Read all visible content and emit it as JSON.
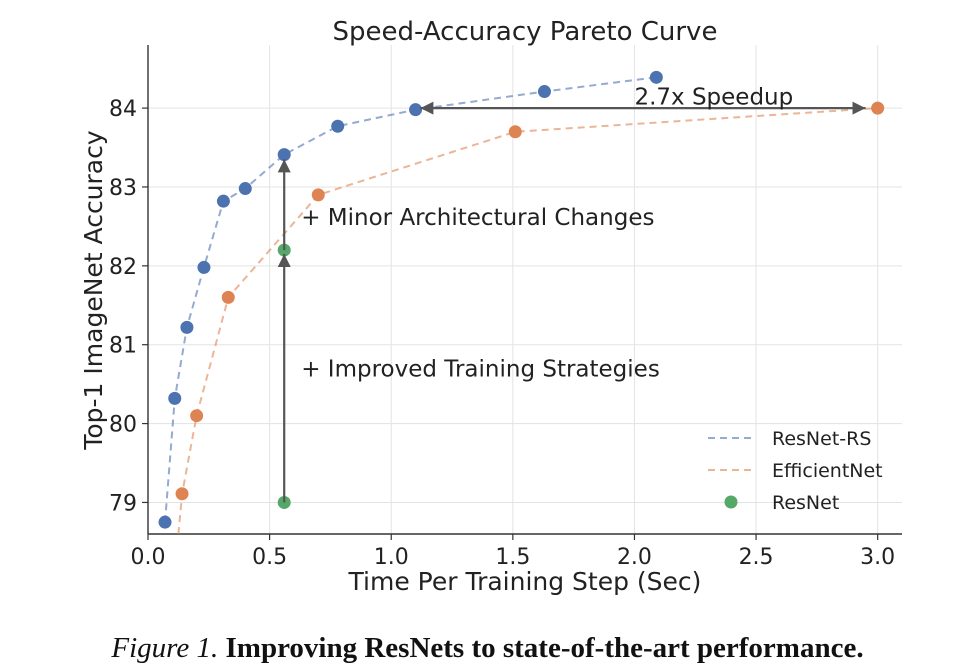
{
  "chart_data": {
    "type": "scatter",
    "title": "Speed-Accuracy Pareto Curve",
    "xlabel": "Time Per Training Step (Sec)",
    "ylabel": "Top-1 ImageNet Accuracy",
    "xlim": [
      0.0,
      3.1
    ],
    "ylim": [
      78.6,
      84.8
    ],
    "xticks": [
      0.0,
      0.5,
      1.0,
      1.5,
      2.0,
      2.5,
      3.0
    ],
    "xtick_labels": [
      "0.0",
      "0.5",
      "1.0",
      "1.5",
      "2.0",
      "2.5",
      "3.0"
    ],
    "yticks": [
      79,
      80,
      81,
      82,
      83,
      84
    ],
    "ytick_labels": [
      "79",
      "80",
      "81",
      "82",
      "83",
      "84"
    ],
    "grid": true,
    "legend_position": "bottom-right",
    "series": [
      {
        "name": "ResNet-RS",
        "color": "#4c72b0",
        "line": "dashed",
        "x": [
          0.07,
          0.11,
          0.16,
          0.23,
          0.31,
          0.4,
          0.56,
          0.78,
          1.1,
          1.63,
          2.09
        ],
        "y": [
          78.75,
          80.32,
          81.22,
          81.98,
          82.82,
          82.98,
          83.41,
          83.77,
          83.98,
          84.21,
          84.39
        ],
        "line_start": null,
        "line_end": null
      },
      {
        "name": "EfficientNet",
        "color": "#dd8452",
        "line": "dashed",
        "x": [
          0.14,
          0.2,
          0.33,
          0.7,
          1.51,
          3.0
        ],
        "y": [
          79.11,
          80.1,
          81.6,
          82.9,
          83.7,
          84.0
        ],
        "line_start": [
          0.125,
          78.6
        ],
        "line_end": null
      },
      {
        "name": "ResNet",
        "color": "#55a868",
        "line": "none",
        "x": [
          0.56,
          0.56
        ],
        "y": [
          79.0,
          82.2
        ]
      }
    ],
    "annotations": [
      {
        "text": "2.7x Speedup",
        "x": 2.0,
        "y": 84.15
      },
      {
        "text": "+ Minor Architectural Changes",
        "x": 0.63,
        "y": 82.62
      },
      {
        "text": "+ Improved Training Strategies",
        "x": 0.63,
        "y": 80.7
      }
    ],
    "arrows": [
      {
        "from": [
          0.56,
          79.0
        ],
        "to": [
          0.56,
          82.15
        ]
      },
      {
        "from": [
          0.56,
          82.2
        ],
        "to": [
          0.56,
          83.35
        ]
      },
      {
        "from": [
          1.12,
          84.0
        ],
        "to": [
          2.95,
          84.0
        ],
        "double": true
      }
    ]
  },
  "caption": {
    "figure_number": "Figure 1.",
    "text": "Improving ResNets to state-of-the-art performance."
  }
}
